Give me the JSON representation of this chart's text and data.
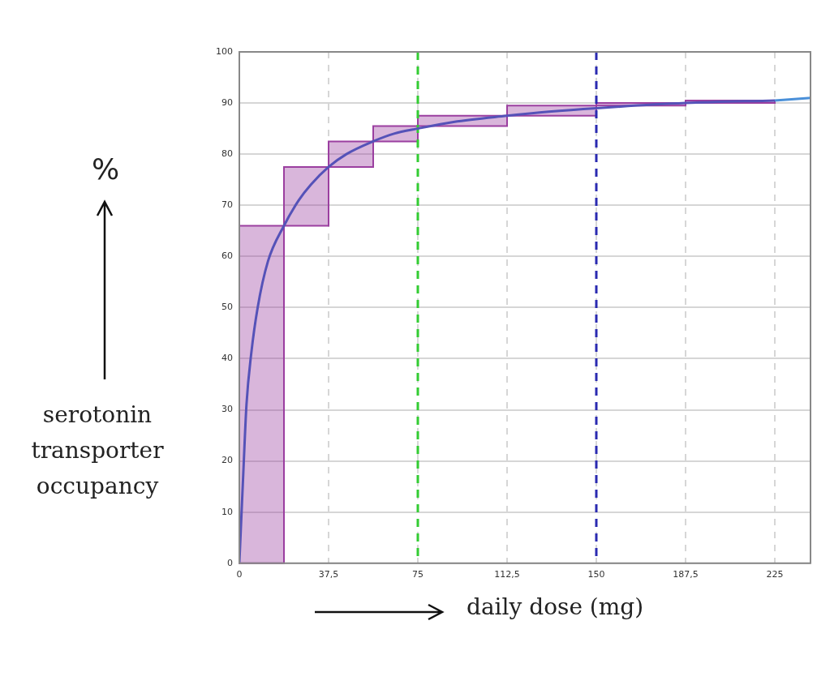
{
  "chart_data": {
    "type": "line",
    "xlabel": "daily dose (mg)",
    "ylabel": "serotonin transporter occupancy",
    "annotations": [
      "%"
    ],
    "xlim": [
      0,
      240
    ],
    "xticks": [
      0,
      {
        "value": 37.5,
        "label": "37,5"
      },
      75,
      {
        "value": 112.5,
        "label": "112,5"
      },
      150,
      {
        "value": 187.5,
        "label": "187,5"
      },
      225
    ],
    "ylim": [
      0,
      100
    ],
    "yticks": [
      0,
      10,
      20,
      30,
      40,
      50,
      60,
      70,
      80,
      90,
      100
    ],
    "grid": true,
    "series": [
      {
        "type": "histogram",
        "color": "#9b3fa0",
        "bins": [
          0,
          18.75,
          37.5,
          56.25,
          75,
          112.5,
          150,
          187.5,
          225
        ],
        "base": [
          0,
          66,
          77.5,
          82.5,
          85.5,
          87.5,
          89.5,
          90
        ],
        "values": [
          66,
          11.5,
          5,
          3,
          2,
          2,
          0.5,
          0.5
        ]
      },
      {
        "type": "line",
        "color": "#5552b8",
        "x": [
          0,
          1.7,
          3,
          5,
          7.7,
          12,
          18.75,
          25,
          30,
          37.5,
          45,
          56.25,
          65,
          75,
          90,
          112.5,
          130,
          150,
          187.5,
          225
        ],
        "values": [
          0,
          18,
          31,
          41,
          50,
          59,
          66,
          71,
          74,
          77.5,
          80,
          82.5,
          84,
          85,
          86.3,
          87.5,
          88.3,
          89,
          90,
          90.5
        ]
      },
      {
        "type": "line",
        "color": "#4a90d9",
        "x": [
          225,
          240
        ],
        "values": [
          90.5,
          91
        ]
      }
    ],
    "ref_lines": [
      {
        "axis": "x",
        "value": 75,
        "color": "#33cc33",
        "line_style": "dashed"
      },
      {
        "axis": "x",
        "value": 150,
        "color": "#2a2ab0",
        "line_style": "dashed"
      }
    ]
  }
}
